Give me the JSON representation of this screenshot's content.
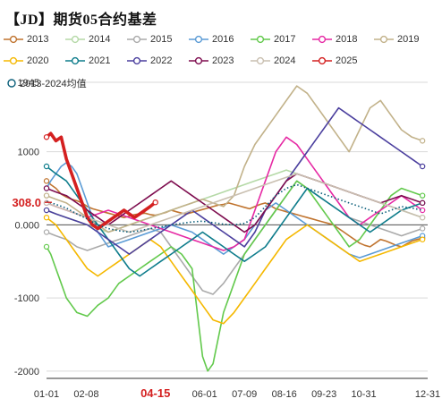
{
  "title": "【JD】期货05合约基差",
  "colors": {
    "2013": "#c0742f",
    "2014": "#b5d9a7",
    "2015": "#aaaaaa",
    "2016": "#5b9bd5",
    "2017": "#62c94c",
    "2018": "#e629a4",
    "2019": "#c2b28a",
    "2020": "#f5b800",
    "2021": "#0f7d8c",
    "2022": "#4b3f9e",
    "2023": "#7e0d4f",
    "2024": "#c9bfb0",
    "2025": "#d42020",
    "avg": "#0b5f7a",
    "grid": "#d9d9d9",
    "axis": "#333333",
    "highlight": "#d42020"
  },
  "chart_data": {
    "type": "line",
    "title": "【JD】期货05合约基差",
    "ylim": [
      -2100,
      1950
    ],
    "yticks": [
      -2000,
      -1000,
      0,
      1000
    ],
    "ytick_labels": [
      "-2000",
      "-1000",
      "0.000",
      "1000"
    ],
    "ylabel_top": "1945",
    "xticks": [
      "01-01",
      "02-08",
      "04-15",
      "06-01",
      "07-09",
      "08-16",
      "09-23",
      "10-31",
      "12-31"
    ],
    "xtick_highlight": "04-15",
    "y_marker": {
      "value": 308,
      "label": "308.0"
    },
    "grid": true,
    "legend_position": "top",
    "series": [
      {
        "name": "2013",
        "color_key": "2013",
        "x": [
          1,
          5,
          10,
          15,
          20,
          25,
          30,
          35,
          40,
          45,
          50,
          55,
          60,
          65,
          70,
          75,
          80,
          85,
          90,
          95,
          100,
          105,
          110,
          115,
          120,
          125,
          130,
          135,
          140,
          145,
          150,
          155,
          160,
          165,
          170,
          175,
          180,
          185,
          190,
          195,
          200,
          205,
          210,
          215,
          220,
          225,
          230,
          235,
          240,
          245,
          250,
          255,
          260,
          265,
          270,
          275,
          280,
          285,
          290,
          295,
          300,
          305,
          310,
          315,
          320,
          325,
          330,
          335,
          340,
          345,
          350,
          355,
          360
        ],
        "y": [
          600,
          550,
          500,
          420,
          380,
          350,
          330,
          300,
          250,
          220,
          200,
          180,
          160,
          140,
          120,
          100,
          120,
          140,
          150,
          160,
          140,
          130,
          150,
          170,
          200,
          180,
          160,
          150,
          170,
          190,
          210,
          230,
          250,
          270,
          280,
          300,
          280,
          260,
          240,
          220,
          250,
          280,
          300,
          260,
          220,
          200,
          180,
          160,
          140,
          120,
          100,
          80,
          60,
          40,
          20,
          0,
          -50,
          -100,
          -150,
          -200,
          -250,
          -280,
          -300,
          -250,
          -200,
          -220,
          -250,
          -280,
          -300,
          -260,
          -220,
          -200,
          -180
        ]
      },
      {
        "name": "2014",
        "color_key": "2014",
        "x": [
          1,
          10,
          20,
          30,
          40,
          50,
          60,
          70,
          80,
          90,
          100,
          110,
          120,
          130,
          140,
          150,
          160,
          170,
          180,
          190,
          200,
          210,
          220,
          230,
          240,
          250,
          260,
          270,
          280,
          290,
          300,
          310,
          320,
          330,
          340,
          350,
          360
        ],
        "y": [
          200,
          150,
          100,
          50,
          0,
          -50,
          -100,
          -50,
          0,
          50,
          100,
          150,
          200,
          250,
          300,
          350,
          400,
          450,
          500,
          550,
          600,
          650,
          700,
          750,
          700,
          650,
          600,
          550,
          500,
          450,
          400,
          350,
          300,
          250,
          200,
          150,
          100
        ]
      },
      {
        "name": "2015",
        "color_key": "2015",
        "x": [
          1,
          10,
          20,
          30,
          40,
          50,
          60,
          70,
          80,
          90,
          100,
          110,
          120,
          130,
          140,
          150,
          160,
          170,
          180,
          190,
          200,
          210,
          220,
          230,
          240,
          250,
          260,
          270,
          280,
          290,
          300,
          310,
          320,
          330,
          340,
          350,
          360
        ],
        "y": [
          -100,
          -150,
          -200,
          -300,
          -350,
          -300,
          -250,
          -200,
          -150,
          -100,
          -50,
          -100,
          -300,
          -500,
          -700,
          -900,
          -950,
          -800,
          -600,
          -400,
          -200,
          0,
          200,
          400,
          600,
          500,
          400,
          300,
          200,
          100,
          50,
          0,
          -50,
          -100,
          -150,
          -100,
          -50
        ]
      },
      {
        "name": "2016",
        "color_key": "2016",
        "x": [
          1,
          5,
          10,
          15,
          20,
          25,
          30,
          35,
          40,
          45,
          50,
          55,
          60,
          70,
          80,
          90,
          100,
          110,
          120,
          130,
          140,
          150,
          160,
          170,
          180,
          190,
          200,
          210,
          220,
          230,
          240,
          250,
          260,
          270,
          280,
          290,
          300,
          310,
          320,
          330,
          340,
          350,
          360
        ],
        "y": [
          500,
          600,
          700,
          800,
          850,
          800,
          700,
          500,
          300,
          100,
          -100,
          -200,
          -300,
          -250,
          -200,
          -150,
          -100,
          -50,
          0,
          -50,
          -100,
          -200,
          -300,
          -400,
          -300,
          -200,
          0,
          200,
          300,
          200,
          100,
          0,
          -100,
          -200,
          -300,
          -400,
          -450,
          -400,
          -350,
          -300,
          -250,
          -200,
          -150
        ]
      },
      {
        "name": "2017",
        "color_key": "2017",
        "x": [
          1,
          5,
          10,
          15,
          20,
          25,
          30,
          40,
          50,
          60,
          70,
          80,
          90,
          100,
          110,
          120,
          130,
          140,
          145,
          150,
          155,
          160,
          170,
          180,
          190,
          200,
          210,
          220,
          230,
          240,
          250,
          260,
          270,
          280,
          290,
          300,
          310,
          320,
          330,
          340,
          350,
          360
        ],
        "y": [
          -300,
          -400,
          -600,
          -800,
          -1000,
          -1100,
          -1200,
          -1250,
          -1100,
          -1000,
          -800,
          -700,
          -600,
          -500,
          -400,
          -300,
          -400,
          -600,
          -1200,
          -1800,
          -2000,
          -1900,
          -1200,
          -800,
          -400,
          -200,
          0,
          200,
          400,
          600,
          500,
          300,
          100,
          -100,
          -300,
          -200,
          0,
          200,
          400,
          500,
          450,
          400
        ]
      },
      {
        "name": "2018",
        "color_key": "2018",
        "x": [
          1,
          10,
          20,
          30,
          40,
          50,
          60,
          70,
          80,
          90,
          100,
          110,
          120,
          130,
          140,
          150,
          160,
          170,
          180,
          190,
          200,
          210,
          220,
          230,
          240,
          250,
          260,
          270,
          280,
          290,
          300,
          310,
          320,
          330,
          340,
          350,
          360
        ],
        "y": [
          300,
          250,
          200,
          150,
          100,
          150,
          200,
          150,
          100,
          50,
          0,
          -50,
          -100,
          -150,
          -200,
          -250,
          -300,
          -350,
          -300,
          -200,
          200,
          600,
          1000,
          1200,
          1100,
          900,
          700,
          500,
          300,
          100,
          0,
          100,
          200,
          300,
          400,
          300,
          200
        ]
      },
      {
        "name": "2019",
        "color_key": "2019",
        "x": [
          1,
          10,
          20,
          30,
          40,
          50,
          60,
          70,
          80,
          90,
          100,
          110,
          120,
          130,
          140,
          150,
          160,
          170,
          180,
          190,
          200,
          210,
          220,
          230,
          240,
          250,
          260,
          270,
          280,
          290,
          300,
          310,
          320,
          330,
          340,
          350,
          360
        ],
        "y": [
          400,
          350,
          300,
          200,
          100,
          0,
          -100,
          -50,
          0,
          50,
          100,
          150,
          200,
          250,
          300,
          350,
          300,
          250,
          400,
          800,
          1100,
          1300,
          1500,
          1700,
          1900,
          1800,
          1600,
          1400,
          1200,
          1000,
          1300,
          1600,
          1700,
          1500,
          1300,
          1200,
          1150
        ]
      },
      {
        "name": "2020",
        "color_key": "2020",
        "x": [
          1,
          10,
          20,
          30,
          40,
          50,
          60,
          70,
          80,
          90,
          100,
          110,
          120,
          130,
          140,
          150,
          160,
          170,
          180,
          190,
          200,
          210,
          220,
          230,
          240,
          250,
          260,
          270,
          280,
          290,
          300,
          310,
          320,
          330,
          340,
          350,
          360
        ],
        "y": [
          100,
          0,
          -200,
          -400,
          -600,
          -700,
          -600,
          -500,
          -400,
          -300,
          -200,
          -300,
          -500,
          -700,
          -900,
          -1100,
          -1300,
          -1350,
          -1200,
          -1000,
          -800,
          -600,
          -400,
          -200,
          -100,
          0,
          -100,
          -200,
          -300,
          -400,
          -500,
          -450,
          -400,
          -350,
          -300,
          -250,
          -200
        ]
      },
      {
        "name": "2021",
        "color_key": "2021",
        "x": [
          1,
          10,
          20,
          30,
          40,
          50,
          60,
          70,
          80,
          90,
          100,
          110,
          120,
          130,
          140,
          150,
          160,
          170,
          180,
          190,
          200,
          210,
          220,
          230,
          240,
          250,
          260,
          270,
          280,
          290,
          300,
          310,
          320,
          330,
          340,
          350,
          360
        ],
        "y": [
          800,
          700,
          600,
          400,
          200,
          0,
          -200,
          -400,
          -600,
          -700,
          -600,
          -500,
          -400,
          -300,
          -200,
          -100,
          -200,
          -300,
          -400,
          -500,
          -400,
          -300,
          -100,
          100,
          300,
          500,
          400,
          300,
          200,
          100,
          0,
          -100,
          0,
          100,
          200,
          250,
          300
        ]
      },
      {
        "name": "2022",
        "color_key": "2022",
        "x": [
          1,
          10,
          20,
          30,
          40,
          50,
          60,
          70,
          80,
          90,
          100,
          110,
          120,
          130,
          140,
          150,
          160,
          170,
          180,
          190,
          200,
          210,
          220,
          230,
          240,
          250,
          260,
          270,
          280,
          290,
          300,
          310,
          320,
          330,
          340,
          350,
          360
        ],
        "y": [
          200,
          150,
          100,
          50,
          0,
          -100,
          -200,
          -300,
          -400,
          -300,
          -200,
          -100,
          0,
          100,
          200,
          100,
          0,
          -100,
          -200,
          -300,
          -100,
          200,
          400,
          600,
          800,
          1000,
          1200,
          1400,
          1600,
          1500,
          1400,
          1300,
          1200,
          1100,
          1000,
          900,
          800
        ]
      },
      {
        "name": "2023",
        "color_key": "2023",
        "x": [
          1,
          10,
          20,
          30,
          40,
          50,
          60,
          70,
          80,
          90,
          100,
          110,
          120,
          130,
          140,
          150,
          160,
          170,
          180,
          190,
          200,
          210,
          220,
          230,
          240,
          250,
          260,
          270,
          280,
          290,
          300,
          310,
          320,
          330,
          340,
          350,
          360
        ],
        "y": [
          500,
          450,
          400,
          300,
          200,
          100,
          0,
          100,
          200,
          300,
          400,
          500,
          600,
          500,
          400,
          300,
          200,
          100,
          0,
          -100,
          0,
          200,
          400,
          600,
          700,
          650,
          600,
          550,
          500,
          450,
          400,
          350,
          300,
          350,
          400,
          350,
          300
        ]
      },
      {
        "name": "2024",
        "color_key": "2024",
        "x": [
          1,
          10,
          20,
          30,
          40,
          50,
          60,
          70,
          80,
          90,
          100,
          110,
          120,
          130,
          140,
          150,
          160,
          170,
          180,
          190,
          200,
          210,
          220,
          230,
          240,
          250,
          260,
          270,
          280,
          290,
          300,
          310,
          320,
          330,
          340,
          350,
          360
        ],
        "y": [
          300,
          250,
          200,
          150,
          100,
          50,
          0,
          -50,
          -100,
          -50,
          0,
          50,
          100,
          150,
          200,
          250,
          300,
          350,
          400,
          450,
          500,
          550,
          600,
          650,
          700,
          650,
          600,
          550,
          500,
          450,
          400,
          350,
          300,
          250,
          200,
          150,
          100
        ]
      },
      {
        "name": "2025",
        "color_key": "2025",
        "bold": true,
        "x": [
          1,
          5,
          10,
          15,
          20,
          25,
          30,
          35,
          40,
          45,
          50,
          55,
          60,
          65,
          70,
          75,
          80,
          85,
          90,
          95,
          100,
          105
        ],
        "y": [
          1200,
          1250,
          1150,
          1200,
          900,
          700,
          500,
          300,
          100,
          0,
          -50,
          0,
          50,
          100,
          150,
          200,
          150,
          100,
          150,
          200,
          250,
          308
        ]
      },
      {
        "name": "2013-2024均值",
        "color_key": "avg",
        "dotted": true,
        "x": [
          1,
          10,
          20,
          30,
          40,
          50,
          60,
          70,
          80,
          90,
          100,
          110,
          120,
          130,
          140,
          150,
          160,
          170,
          180,
          190,
          200,
          210,
          220,
          230,
          240,
          250,
          260,
          270,
          280,
          290,
          300,
          310,
          320,
          330,
          340,
          350,
          360
        ],
        "y": [
          320,
          280,
          230,
          150,
          80,
          0,
          -50,
          -80,
          -100,
          -80,
          -50,
          -30,
          0,
          20,
          40,
          50,
          30,
          10,
          0,
          20,
          100,
          250,
          400,
          500,
          550,
          500,
          450,
          400,
          350,
          300,
          250,
          200,
          150,
          200,
          250,
          230,
          200
        ]
      }
    ]
  }
}
